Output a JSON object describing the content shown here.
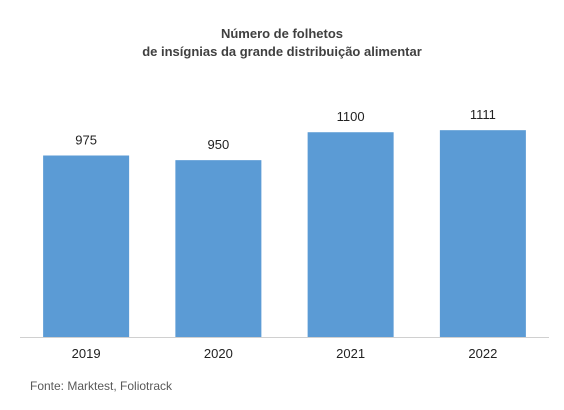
{
  "chart_data": {
    "type": "bar",
    "title_lines": [
      "Número de folhetos",
      "de insígnias da grande distribuição alimentar"
    ],
    "categories": [
      "2019",
      "2020",
      "2021",
      "2022"
    ],
    "values": [
      975,
      950,
      1100,
      1111
    ],
    "data_labels": [
      "975",
      "950",
      "1100",
      "1111"
    ],
    "xlabel": "",
    "ylabel": "",
    "ylim": [
      0,
      1300
    ],
    "grid": false,
    "legend": "none",
    "bar_color": "#5B9BD5",
    "source": "Fonte: Marktest, Foliotrack"
  }
}
